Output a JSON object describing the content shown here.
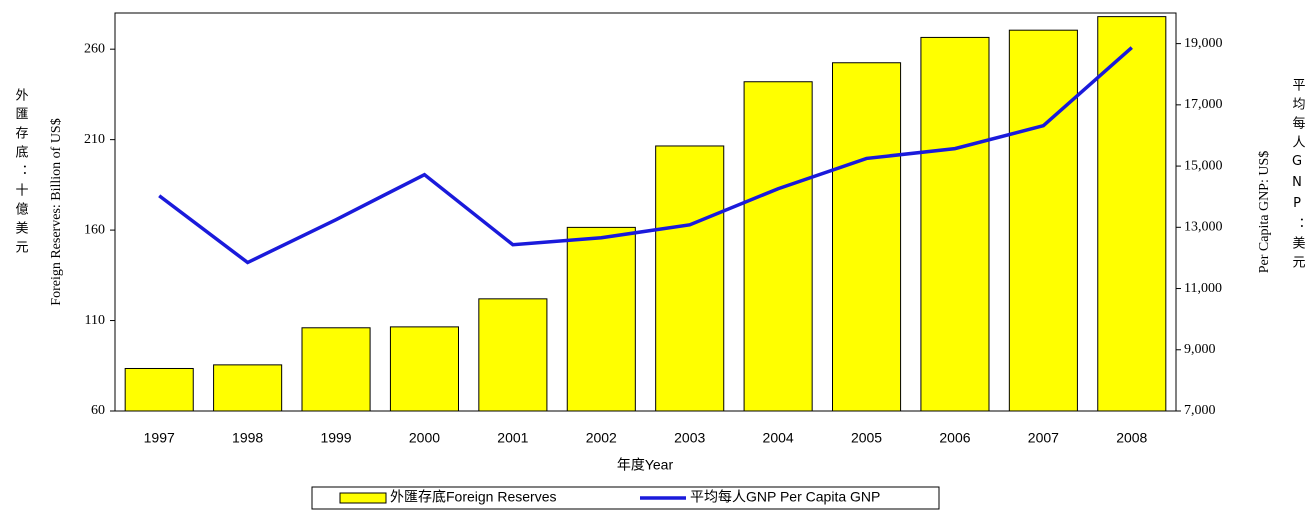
{
  "chart_data": {
    "type": "bar",
    "x_label": "年度Year",
    "y_label": "Foreign Reserves: Billion of US$",
    "y_label_zh": "外匯存底：十億美元",
    "y2_label": "Per Capita GNP: US$",
    "y2_label_zh": "平均每人GNP：美元",
    "categories": [
      "1997",
      "1998",
      "1999",
      "2000",
      "2001",
      "2002",
      "2003",
      "2004",
      "2005",
      "2006",
      "2007",
      "2008"
    ],
    "series": [
      {
        "name": "外匯存底Foreign Reserves",
        "type": "bar",
        "color": "#ffff00",
        "values": [
          83.5,
          85.5,
          106,
          106.5,
          122,
          161.5,
          206.5,
          242,
          252.5,
          266.5,
          270.5,
          278
        ]
      },
      {
        "name": "平均每人GNP Per Capita GNP",
        "type": "line",
        "axis": "y2",
        "color": "#1a1adb",
        "values": [
          14030,
          11850,
          13250,
          14720,
          12430,
          12660,
          13080,
          14260,
          15250,
          15570,
          16320,
          18870
        ]
      }
    ],
    "ylim": [
      60,
      280
    ],
    "yticks": [
      60,
      110,
      160,
      210,
      260
    ],
    "y2lim": [
      7000,
      20000
    ],
    "y2ticks": [
      {
        "value": 7000,
        "label": "7,000"
      },
      {
        "value": 9000,
        "label": "9,000"
      },
      {
        "value": 11000,
        "label": "11,000"
      },
      {
        "value": 13000,
        "label": "13,000"
      },
      {
        "value": 15000,
        "label": "15,000"
      },
      {
        "value": 17000,
        "label": "17,000"
      },
      {
        "value": 19000,
        "label": "19,000"
      }
    ]
  }
}
